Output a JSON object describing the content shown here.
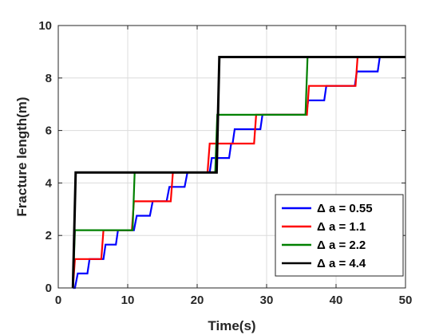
{
  "chart_data": {
    "type": "line",
    "xlabel": "Time(s)",
    "ylabel": "Fracture length(m)",
    "xlim": [
      0,
      50
    ],
    "ylim": [
      0,
      10
    ],
    "x_ticks": [
      0,
      10,
      20,
      30,
      40,
      50
    ],
    "y_ticks": [
      0,
      2,
      4,
      6,
      8,
      10
    ],
    "grid": true,
    "legend_position": "bottom-right",
    "series": [
      {
        "name": "Δ a = 0.55",
        "color": "#0000ff",
        "points": [
          [
            2.1,
            0
          ],
          [
            2.4,
            0
          ],
          [
            2.8,
            0.55
          ],
          [
            4.2,
            0.55
          ],
          [
            4.5,
            1.1
          ],
          [
            6.5,
            1.1
          ],
          [
            6.8,
            1.65
          ],
          [
            8.3,
            1.65
          ],
          [
            8.6,
            2.2
          ],
          [
            10.9,
            2.2
          ],
          [
            11.3,
            2.75
          ],
          [
            13.2,
            2.75
          ],
          [
            13.6,
            3.3
          ],
          [
            15.6,
            3.3
          ],
          [
            16.0,
            3.85
          ],
          [
            18.2,
            3.85
          ],
          [
            18.6,
            4.4
          ],
          [
            21.8,
            4.4
          ],
          [
            22.1,
            4.95
          ],
          [
            24.6,
            4.95
          ],
          [
            24.9,
            5.5
          ],
          [
            25.1,
            5.5
          ],
          [
            25.4,
            6.05
          ],
          [
            29.1,
            6.05
          ],
          [
            29.4,
            6.6
          ],
          [
            35.7,
            6.6
          ],
          [
            36.0,
            7.15
          ],
          [
            38.3,
            7.15
          ],
          [
            38.6,
            7.7
          ],
          [
            42.7,
            7.7
          ],
          [
            43.0,
            8.25
          ],
          [
            46.0,
            8.25
          ],
          [
            46.3,
            8.8
          ],
          [
            50.0,
            8.8
          ]
        ]
      },
      {
        "name": "Δ a = 1.1",
        "color": "#ff0000",
        "points": [
          [
            2.1,
            0
          ],
          [
            2.4,
            1.1
          ],
          [
            6.2,
            1.1
          ],
          [
            6.5,
            2.2
          ],
          [
            10.6,
            2.2
          ],
          [
            10.9,
            3.3
          ],
          [
            16.2,
            3.3
          ],
          [
            16.5,
            4.4
          ],
          [
            21.5,
            4.4
          ],
          [
            21.8,
            5.5
          ],
          [
            28.2,
            5.5
          ],
          [
            28.5,
            6.6
          ],
          [
            35.8,
            6.6
          ],
          [
            36.1,
            7.7
          ],
          [
            42.8,
            7.7
          ],
          [
            43.1,
            8.8
          ],
          [
            50.0,
            8.8
          ]
        ]
      },
      {
        "name": "Δ a = 2.2",
        "color": "#008000",
        "points": [
          [
            2.1,
            0
          ],
          [
            2.4,
            2.2
          ],
          [
            10.7,
            2.2
          ],
          [
            11.0,
            4.4
          ],
          [
            22.6,
            4.4
          ],
          [
            22.9,
            6.6
          ],
          [
            35.6,
            6.6
          ],
          [
            35.9,
            8.8
          ],
          [
            50.0,
            8.8
          ]
        ]
      },
      {
        "name": "Δ a = 4.4",
        "color": "#000000",
        "points": [
          [
            2.1,
            0
          ],
          [
            2.5,
            4.4
          ],
          [
            22.8,
            4.4
          ],
          [
            23.2,
            8.8
          ],
          [
            50.0,
            8.8
          ]
        ]
      }
    ]
  }
}
